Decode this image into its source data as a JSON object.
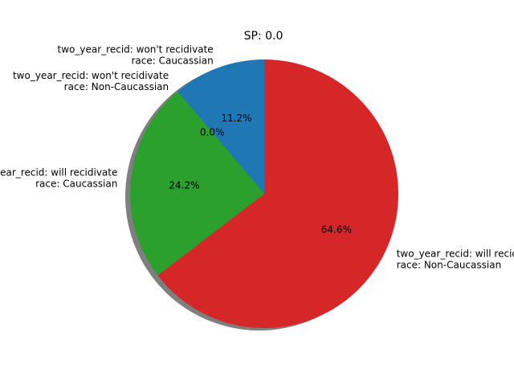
{
  "chart_data": {
    "type": "pie",
    "title": "SP: 0.0",
    "shadow": true,
    "start_angle_deg": 90,
    "direction": "counterclockwise",
    "slices": [
      {
        "label_lines": [
          "two_year_recid: won't recidivate",
          "race: Caucassian"
        ],
        "value": 11.2,
        "pct_label": "11.2%",
        "color": "#1f77b4"
      },
      {
        "label_lines": [
          "two_year_recid: won't recidivate",
          "race: Non-Caucassian"
        ],
        "value": 0.0,
        "pct_label": "0.0%",
        "color": "#ff7f0e"
      },
      {
        "label_lines": [
          "two_year_recid: will recidivate",
          "race: Caucassian"
        ],
        "value": 24.2,
        "pct_label": "24.2%",
        "color": "#2ca02c"
      },
      {
        "label_lines": [
          "two_year_recid: will recidivate",
          "race: Non-Caucassian"
        ],
        "value": 64.6,
        "pct_label": "64.6%",
        "color": "#d62728"
      }
    ]
  }
}
